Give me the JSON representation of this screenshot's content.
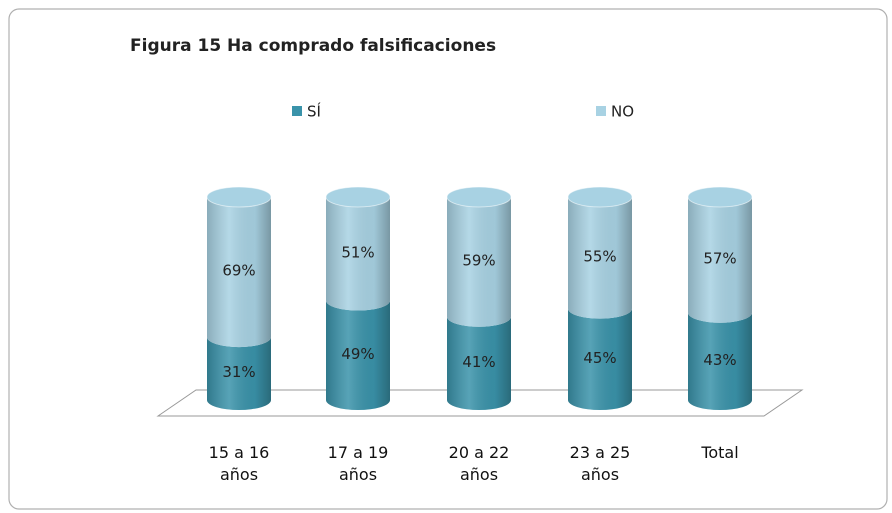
{
  "chart_data": {
    "type": "stacked-cylinder",
    "title": "Figura 15 Ha comprado falsificaciones",
    "categories": [
      "15 a 16 años",
      "17 a 19 años",
      "20 a 22 años",
      "23 a 25 años",
      "Total"
    ],
    "series": [
      {
        "name": "SÍ",
        "color": "#3a93aa",
        "values": [
          31,
          49,
          41,
          45,
          43
        ],
        "value_labels": [
          "31%",
          "49%",
          "41%",
          "45%",
          "43%"
        ]
      },
      {
        "name": "NO",
        "color": "#a8d2e3",
        "values": [
          69,
          51,
          59,
          55,
          57
        ],
        "value_labels": [
          "69%",
          "51%",
          "59%",
          "55%",
          "57%"
        ]
      }
    ],
    "legend": "top"
  }
}
